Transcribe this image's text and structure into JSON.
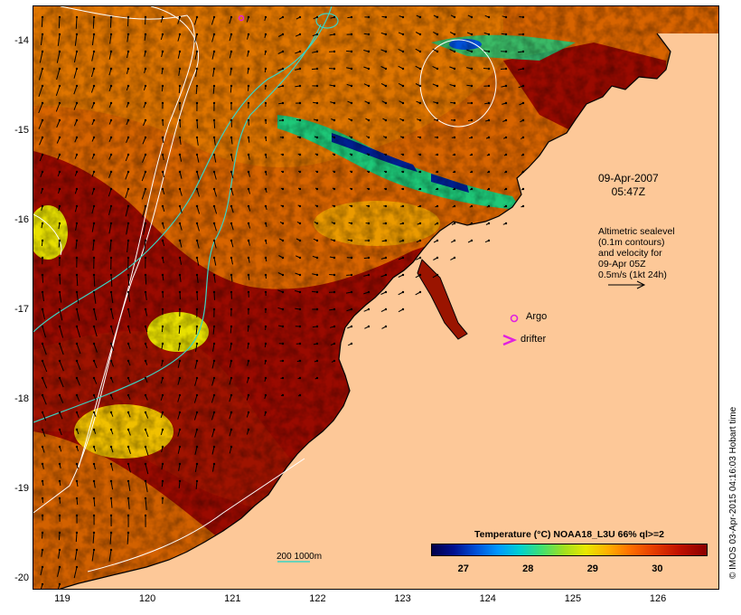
{
  "map": {
    "y_ticks": [
      "-14",
      "-15",
      "-16",
      "-17",
      "-18",
      "-19",
      "-20"
    ],
    "x_ticks": [
      "119",
      "120",
      "121",
      "122",
      "123",
      "124",
      "125",
      "126"
    ],
    "lat_range": [
      -20.1,
      -13.6
    ],
    "lon_range": [
      118.65,
      126.7
    ],
    "colors": {
      "land": "#fdc898",
      "sst_hot": "#9a0a00",
      "sst_warm": "#d85400",
      "sst_mid": "#f0a800",
      "sst_cool": "#e8e000",
      "sst_cold": "#00c870",
      "sst_coldest": "#001890",
      "contour_sealevel": "#ffffff",
      "contour_bathy": "#3ad4c4",
      "argo": "#e020e0",
      "drifter": "#e020e0",
      "vector": "#000000"
    }
  },
  "annotations": {
    "date": "09-Apr-2007",
    "time": "05:47Z",
    "altimetric_lines": [
      "Altimetric sealevel",
      "(0.1m contours)",
      "and velocity for",
      "09-Apr 05Z",
      "0.5m/s (1kt 24h)"
    ],
    "argo_label": "Argo",
    "drifter_label": "drifter",
    "bathy_scale_label": "200  1000m",
    "credit": "© IMOS 03-Apr-2015 04:16:03 Hobart time"
  },
  "colorbar": {
    "title": "Temperature (°C) NOAA18_L3U 66% ql>=2",
    "ticks": [
      "27",
      "28",
      "29",
      "30"
    ],
    "tick_values": [
      27,
      28,
      29,
      30
    ],
    "range": [
      26.5,
      30.75
    ]
  }
}
